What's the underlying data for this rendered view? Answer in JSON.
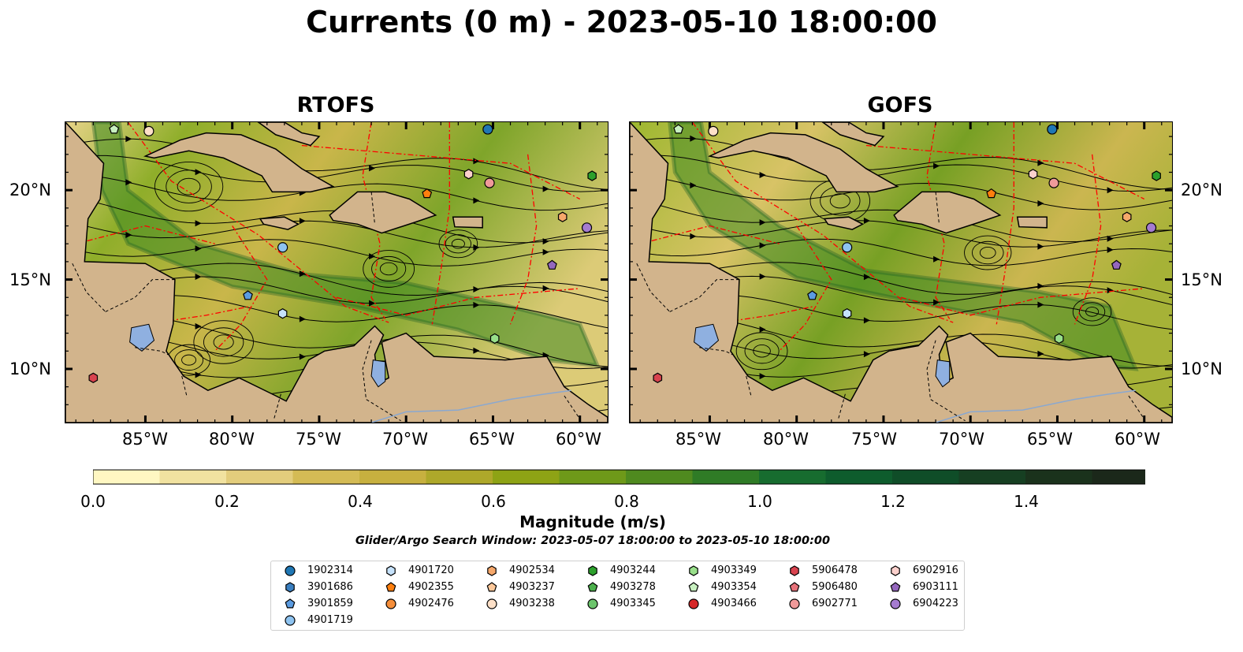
{
  "title": "Currents (0 m) - 2023-05-10 18:00:00",
  "panels": [
    {
      "title": "RTOFS"
    },
    {
      "title": "GOFS"
    }
  ],
  "axes": {
    "lat_labels": [
      "20°N",
      "15°N",
      "10°N"
    ],
    "lon_labels": [
      "85°W",
      "80°W",
      "75°W",
      "70°W",
      "65°W",
      "60°W"
    ]
  },
  "colorbar": {
    "label": "Magnitude (m/s)",
    "ticks": [
      "0.0",
      "0.2",
      "0.4",
      "0.6",
      "0.8",
      "1.0",
      "1.2",
      "1.4"
    ],
    "min": 0.0,
    "max": 1.6,
    "extend": "max",
    "colors": [
      "#fff7c2",
      "#f1e2a0",
      "#e3cd7c",
      "#d4bb55",
      "#c7b03f",
      "#aea82a",
      "#8ea315",
      "#6e9919",
      "#4f8a1f",
      "#2f7b26",
      "#176c2f",
      "#0e5c2d",
      "#0f4d28",
      "#163f22",
      "#1a321c",
      "#1b281a"
    ]
  },
  "search_window": "Glider/Argo Search Window: 2023-05-07 18:00:00 to 2023-05-10 18:00:00",
  "colors": {
    "land": "#d2b48c",
    "ocean_low": "#fff7c2",
    "eez": "#ff0000",
    "lake": "#8fb0e0"
  },
  "legend": [
    {
      "id": "1902314",
      "marker": "circle",
      "color": "#1f77b4"
    },
    {
      "id": "3901686",
      "marker": "hexagon",
      "color": "#3a7fc0"
    },
    {
      "id": "3901859",
      "marker": "pentagon",
      "color": "#5b9be0"
    },
    {
      "id": "4901719",
      "marker": "circle",
      "color": "#8ec3f0"
    },
    {
      "id": "4901720",
      "marker": "hexagon",
      "color": "#c6e2fb"
    },
    {
      "id": "4902355",
      "marker": "pentagon",
      "color": "#ff7f0e"
    },
    {
      "id": "4902476",
      "marker": "circle",
      "color": "#f58e3a"
    },
    {
      "id": "4902534",
      "marker": "hexagon",
      "color": "#f6a86b"
    },
    {
      "id": "4903237",
      "marker": "pentagon",
      "color": "#fdc89a"
    },
    {
      "id": "4903238",
      "marker": "circle",
      "color": "#fde0c8"
    },
    {
      "id": "4903244",
      "marker": "hexagon",
      "color": "#2ca02c"
    },
    {
      "id": "4903278",
      "marker": "pentagon",
      "color": "#4cb04c"
    },
    {
      "id": "4903345",
      "marker": "circle",
      "color": "#6cc46c"
    },
    {
      "id": "4903349",
      "marker": "hexagon",
      "color": "#98df8a"
    },
    {
      "id": "4903354",
      "marker": "pentagon",
      "color": "#c8f0c0"
    },
    {
      "id": "4903466",
      "marker": "circle",
      "color": "#d62728"
    },
    {
      "id": "5906478",
      "marker": "hexagon",
      "color": "#d9434f"
    },
    {
      "id": "5906480",
      "marker": "pentagon",
      "color": "#e7727a"
    },
    {
      "id": "6902771",
      "marker": "circle",
      "color": "#f09a9a"
    },
    {
      "id": "6902916",
      "marker": "hexagon",
      "color": "#fbd0cc"
    },
    {
      "id": "6903111",
      "marker": "pentagon",
      "color": "#9467bd"
    },
    {
      "id": "6904223",
      "marker": "circle",
      "color": "#a57cd0"
    }
  ],
  "floats": [
    {
      "id": "1902314",
      "lon": -65.3,
      "lat": 23.4
    },
    {
      "id": "4903354",
      "lon": -86.8,
      "lat": 23.4
    },
    {
      "id": "4903238",
      "lon": -84.8,
      "lat": 23.3
    },
    {
      "id": "4903244",
      "lon": -59.3,
      "lat": 20.8
    },
    {
      "id": "6902916",
      "lon": -66.4,
      "lat": 20.9
    },
    {
      "id": "6902771",
      "lon": -65.2,
      "lat": 20.4
    },
    {
      "id": "4902355",
      "lon": -68.8,
      "lat": 19.8
    },
    {
      "id": "4902534",
      "lon": -61.0,
      "lat": 18.5
    },
    {
      "id": "6904223",
      "lon": -59.6,
      "lat": 17.9
    },
    {
      "id": "4901719",
      "lon": -77.1,
      "lat": 16.8
    },
    {
      "id": "6903111",
      "lon": -61.6,
      "lat": 15.8
    },
    {
      "id": "3901859",
      "lon": -79.1,
      "lat": 14.1
    },
    {
      "id": "4901720",
      "lon": -77.1,
      "lat": 13.1
    },
    {
      "id": "4903349",
      "lon": -64.9,
      "lat": 11.7
    },
    {
      "id": "5906478",
      "lon": -88.0,
      "lat": 9.5
    }
  ]
}
